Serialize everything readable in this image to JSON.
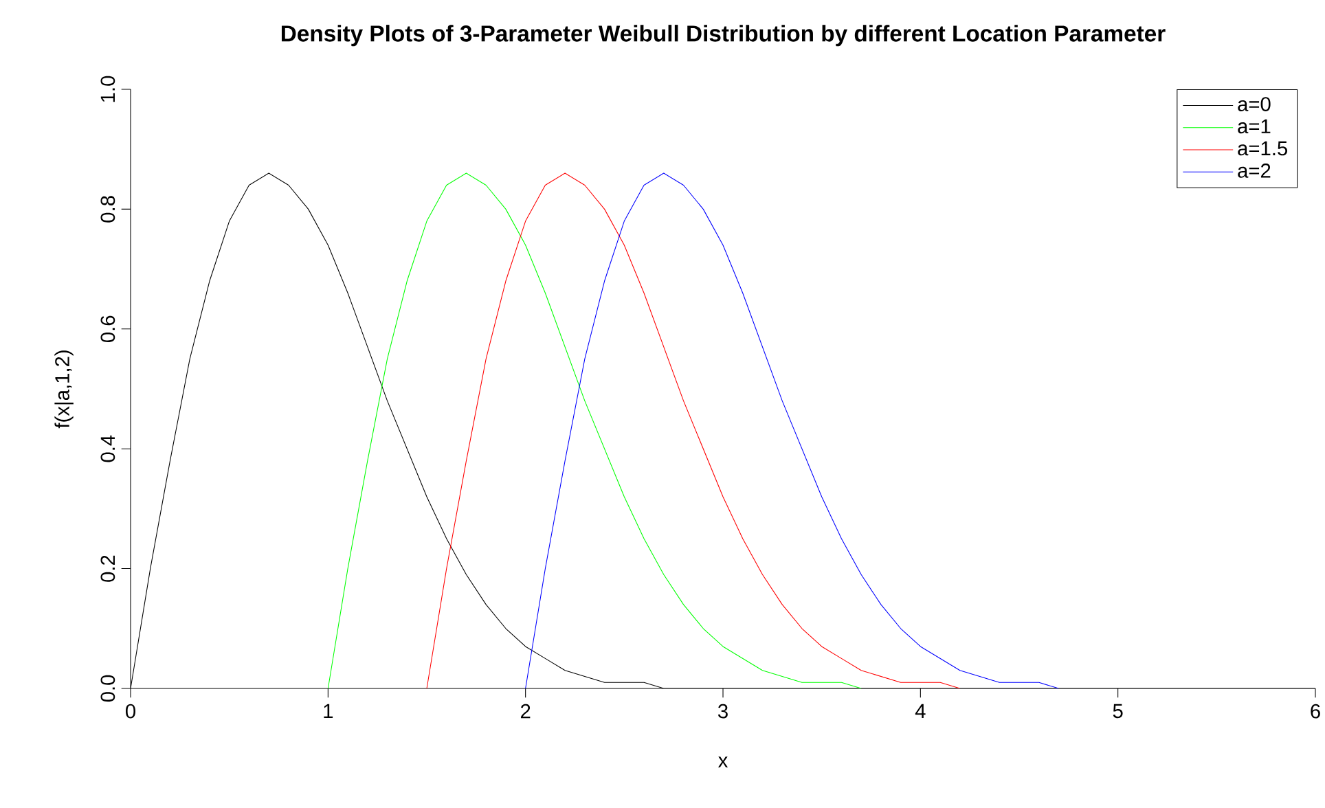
{
  "chart_data": {
    "type": "line",
    "title": "Density Plots of 3-Parameter Weibull Distribution by different Location Parameter",
    "xlabel": "x",
    "ylabel": "f(x|a,1,2)",
    "xlim": [
      0,
      6
    ],
    "ylim": [
      0,
      1
    ],
    "xticks": [
      0,
      1,
      2,
      3,
      4,
      5,
      6
    ],
    "yticks": [
      {
        "value": 0,
        "label": "0.0"
      },
      {
        "value": 0.2,
        "label": "0.2"
      },
      {
        "value": 0.4,
        "label": "0.4"
      },
      {
        "value": 0.6,
        "label": "0.6"
      },
      {
        "value": 0.8,
        "label": "0.8"
      },
      {
        "value": 1,
        "label": "1.0"
      }
    ],
    "grid": false,
    "legend": "top right",
    "marker": "none",
    "line_style": "solid",
    "series": [
      {
        "name": "a=0",
        "color": "#000000",
        "x": [
          0,
          0.1,
          0.2,
          0.3,
          0.4,
          0.5,
          0.6,
          0.7,
          0.8,
          0.9,
          1.0,
          1.1,
          1.2,
          1.3,
          1.4,
          1.5,
          1.6,
          1.7,
          1.8,
          1.9,
          2.0,
          2.1,
          2.2,
          2.3,
          2.4,
          2.5,
          2.6,
          2.7,
          2.8,
          3.0,
          6
        ],
        "values": [
          0,
          0.2,
          0.38,
          0.55,
          0.68,
          0.78,
          0.84,
          0.86,
          0.84,
          0.8,
          0.74,
          0.66,
          0.57,
          0.48,
          0.4,
          0.32,
          0.25,
          0.19,
          0.14,
          0.1,
          0.07,
          0.05,
          0.03,
          0.02,
          0.01,
          0.01,
          0.01,
          0,
          0,
          0,
          0
        ]
      },
      {
        "name": "a=1",
        "color": "#00ff00",
        "x": [
          1.0,
          1.1,
          1.2,
          1.3,
          1.4,
          1.5,
          1.6,
          1.7,
          1.8,
          1.9,
          2.0,
          2.1,
          2.2,
          2.3,
          2.4,
          2.5,
          2.6,
          2.7,
          2.8,
          2.9,
          3.0,
          3.1,
          3.2,
          3.3,
          3.4,
          3.5,
          3.6,
          3.7
        ],
        "values": [
          0,
          0.2,
          0.38,
          0.55,
          0.68,
          0.78,
          0.84,
          0.86,
          0.84,
          0.8,
          0.74,
          0.66,
          0.57,
          0.48,
          0.4,
          0.32,
          0.25,
          0.19,
          0.14,
          0.1,
          0.07,
          0.05,
          0.03,
          0.02,
          0.01,
          0.01,
          0.01,
          0
        ]
      },
      {
        "name": "a=1.5",
        "color": "#ff0000",
        "x": [
          1.5,
          1.6,
          1.7,
          1.8,
          1.9,
          2.0,
          2.1,
          2.2,
          2.3,
          2.4,
          2.5,
          2.6,
          2.7,
          2.8,
          2.9,
          3.0,
          3.1,
          3.2,
          3.3,
          3.4,
          3.5,
          3.6,
          3.7,
          3.8,
          3.9,
          4.0,
          4.1,
          4.2
        ],
        "values": [
          0,
          0.2,
          0.38,
          0.55,
          0.68,
          0.78,
          0.84,
          0.86,
          0.84,
          0.8,
          0.74,
          0.66,
          0.57,
          0.48,
          0.4,
          0.32,
          0.25,
          0.19,
          0.14,
          0.1,
          0.07,
          0.05,
          0.03,
          0.02,
          0.01,
          0.01,
          0.01,
          0
        ]
      },
      {
        "name": "a=2",
        "color": "#0000ff",
        "x": [
          2.0,
          2.1,
          2.2,
          2.3,
          2.4,
          2.5,
          2.6,
          2.7,
          2.8,
          2.9,
          3.0,
          3.1,
          3.2,
          3.3,
          3.4,
          3.5,
          3.6,
          3.7,
          3.8,
          3.9,
          4.0,
          4.1,
          4.2,
          4.3,
          4.4,
          4.5,
          4.6,
          4.7
        ],
        "values": [
          0,
          0.2,
          0.38,
          0.55,
          0.68,
          0.78,
          0.84,
          0.86,
          0.84,
          0.8,
          0.74,
          0.66,
          0.57,
          0.48,
          0.4,
          0.32,
          0.25,
          0.19,
          0.14,
          0.1,
          0.07,
          0.05,
          0.03,
          0.02,
          0.01,
          0.01,
          0.01,
          0
        ]
      }
    ]
  }
}
